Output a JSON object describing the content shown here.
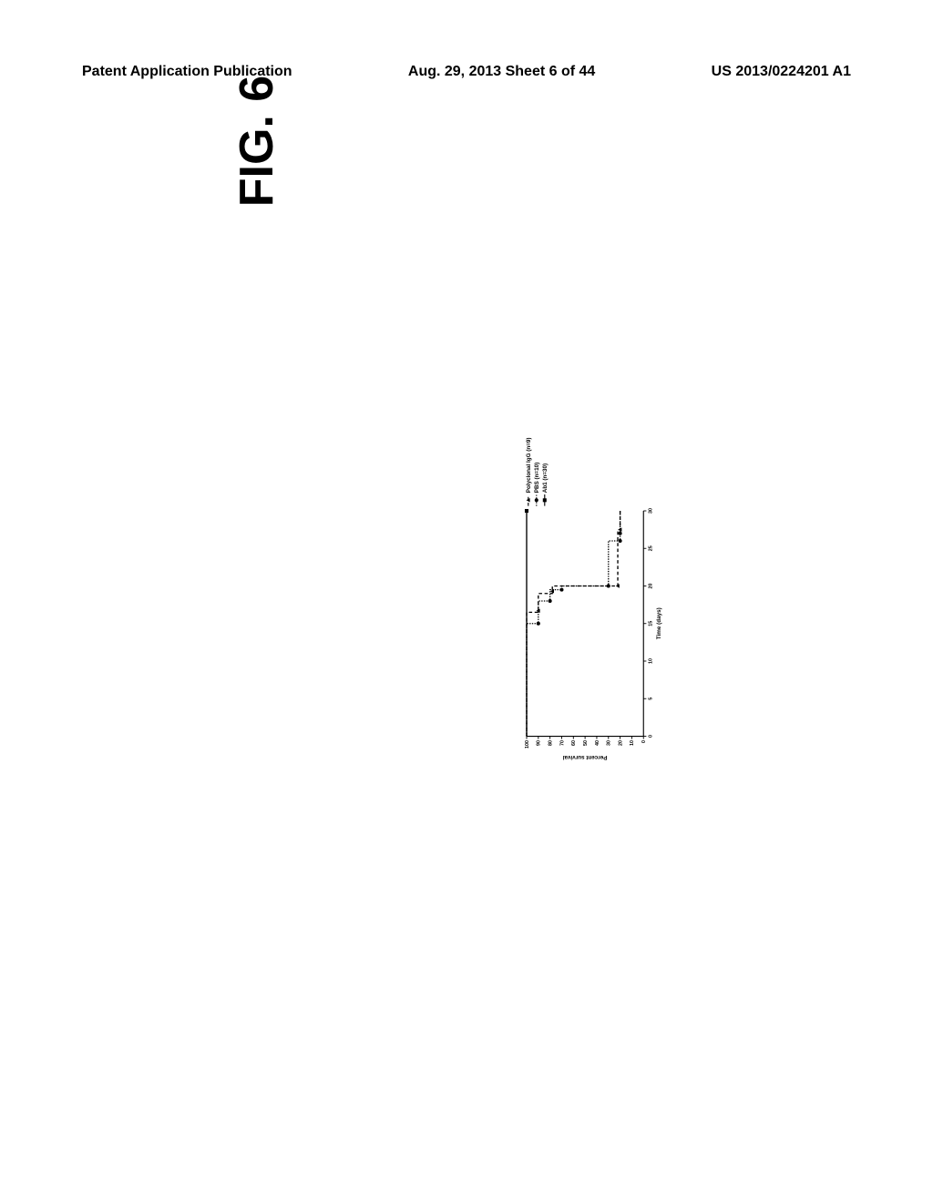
{
  "header": {
    "left": "Patent Application Publication",
    "center": "Aug. 29, 2013  Sheet 6 of 44",
    "right": "US 2013/0224201 A1"
  },
  "figure": {
    "title": "FIG. 6",
    "chart": {
      "type": "survival-step",
      "xlabel": "Time (days)",
      "ylabel": "Percent survival",
      "xlim": [
        0,
        30
      ],
      "ylim": [
        0,
        100
      ],
      "xticks": [
        0,
        5,
        10,
        15,
        20,
        25,
        30
      ],
      "yticks": [
        0,
        10,
        20,
        30,
        40,
        50,
        60,
        70,
        80,
        90,
        100
      ],
      "label_fontsize": 14,
      "tick_fontsize": 12,
      "axis_color": "#000000",
      "axis_width": 2.5,
      "background_color": "#ffffff",
      "series": [
        {
          "name": "Polyclonal IgG (n=9)",
          "marker": "triangle",
          "dash": "8,6",
          "color": "#000000",
          "linewidth": 3,
          "points": [
            [
              0,
              100
            ],
            [
              16.5,
              100
            ],
            [
              16.5,
              90
            ],
            [
              19,
              90
            ],
            [
              19,
              78
            ],
            [
              20,
              78
            ],
            [
              20,
              22
            ],
            [
              27.5,
              22
            ],
            [
              27.5,
              20
            ],
            [
              30,
              20
            ]
          ],
          "markers_at": [
            [
              16.7,
              90
            ],
            [
              19.3,
              78
            ],
            [
              20,
              22
            ],
            [
              27.5,
              20
            ]
          ]
        },
        {
          "name": "PBS (n=10)",
          "marker": "circle",
          "dash": "3,3",
          "color": "#000000",
          "linewidth": 3,
          "points": [
            [
              0,
              100
            ],
            [
              15,
              100
            ],
            [
              15,
              90
            ],
            [
              18,
              90
            ],
            [
              18,
              80
            ],
            [
              19.5,
              80
            ],
            [
              19.5,
              70
            ],
            [
              20,
              70
            ],
            [
              20,
              30
            ],
            [
              26,
              30
            ],
            [
              26,
              20
            ],
            [
              27,
              20
            ],
            [
              27,
              20
            ],
            [
              30,
              20
            ]
          ],
          "markers_at": [
            [
              15,
              90
            ],
            [
              18,
              80
            ],
            [
              19.5,
              70
            ],
            [
              20,
              30
            ],
            [
              26,
              20
            ],
            [
              27,
              20
            ]
          ]
        },
        {
          "name": "Ab1 (n=30)",
          "marker": "square",
          "dash": "",
          "color": "#000000",
          "linewidth": 3,
          "points": [
            [
              0,
              100
            ],
            [
              30,
              100
            ]
          ],
          "markers_at": [
            [
              30,
              100
            ]
          ]
        }
      ],
      "legend": {
        "position": "right",
        "fontsize": 14
      }
    }
  }
}
